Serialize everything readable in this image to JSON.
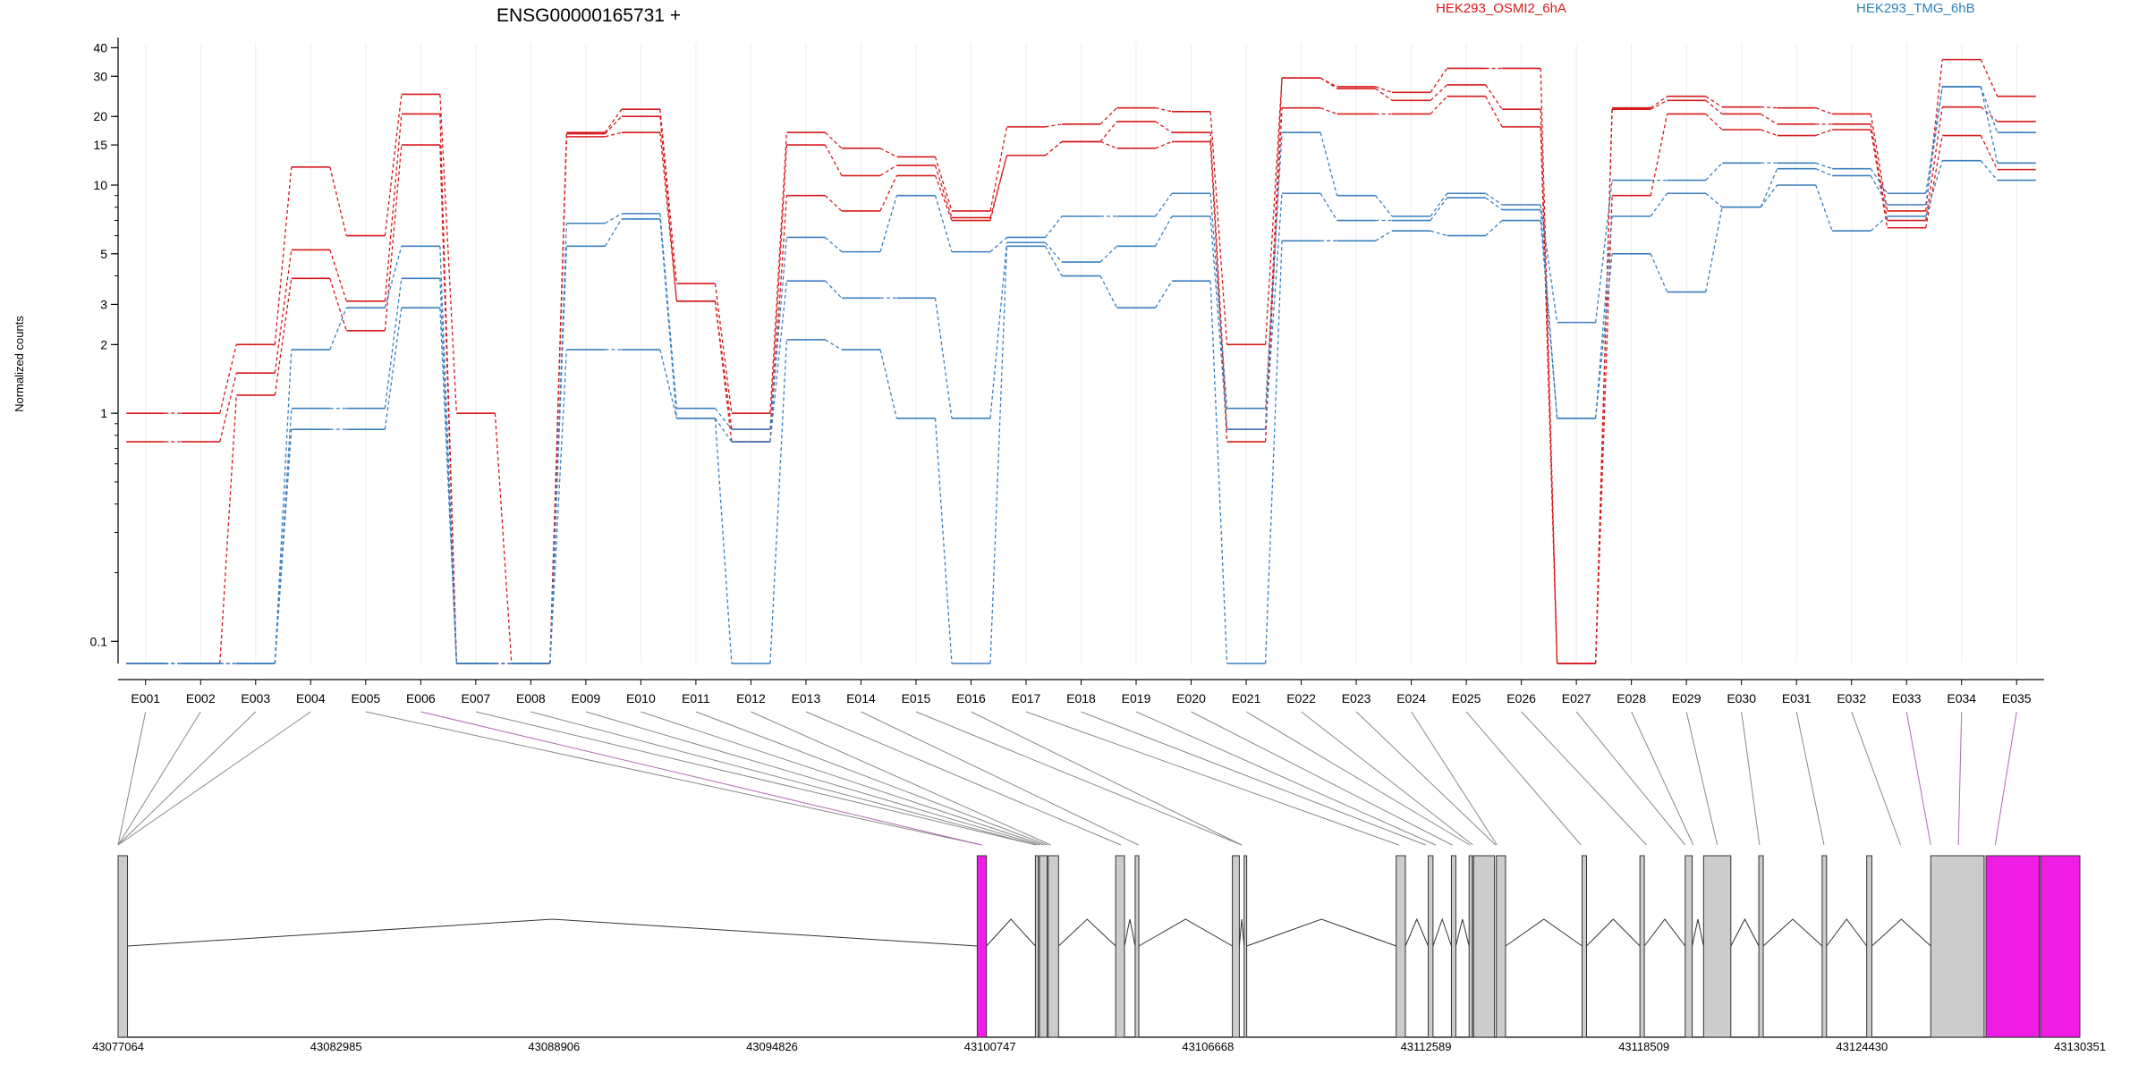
{
  "title": "ENSG00000165731 +",
  "legend": [
    {
      "name": "HEK293_OSMI2_6hA",
      "color": "#d7191c"
    },
    {
      "name": "HEK293_TMG_6hB",
      "color": "#2b83ba"
    }
  ],
  "colors": {
    "osmi": "#d7191c",
    "tmg": "#3a7fbf",
    "exon": "#cccccc",
    "exon_highlight": "#f01ee4",
    "connector": "#888888",
    "connector_highlight": "#b06ab0",
    "grid": "#eeeeee"
  },
  "chart_data": {
    "type": "line",
    "ylabel": "Normalized counts",
    "y_scale": "log",
    "ylim": [
      0.08,
      42
    ],
    "yticks": [
      0.1,
      1,
      2,
      3,
      5,
      10,
      15,
      20,
      30,
      40
    ],
    "ytick_labels": [
      "0.1",
      "1",
      "2",
      "3",
      "5",
      "10",
      "15",
      "20",
      "30",
      "40"
    ],
    "categories": [
      "E001",
      "E002",
      "E003",
      "E004",
      "E005",
      "E006",
      "E007",
      "E008",
      "E009",
      "E010",
      "E011",
      "E012",
      "E013",
      "E014",
      "E015",
      "E016",
      "E017",
      "E018",
      "E019",
      "E020",
      "E021",
      "E022",
      "E023",
      "E024",
      "E025",
      "E026",
      "E027",
      "E028",
      "E029",
      "E030",
      "E031",
      "E032",
      "E033",
      "E034",
      "E035"
    ],
    "series": [
      {
        "name": "HEK293_OSMI2_6hA",
        "values": [
          1.0,
          1.0,
          2.0,
          12.0,
          6.0,
          25.0,
          1.0,
          0.08,
          17.0,
          21.5,
          3.7,
          1.0,
          17.0,
          14.5,
          13.3,
          7.7,
          18.0,
          18.5,
          21.8,
          21.0,
          2.0,
          29.5,
          27.0,
          25.5,
          32.5,
          32.5,
          0.08,
          21.8,
          24.5,
          22.0,
          21.8,
          20.5,
          7.7,
          35.5,
          24.5
        ]
      },
      {
        "name": "HEK293_OSMI2_6hA",
        "values": [
          0.75,
          0.75,
          1.5,
          5.2,
          3.1,
          20.5,
          0.08,
          0.08,
          16.8,
          20.0,
          3.1,
          0.85,
          15.0,
          11.0,
          12.2,
          7.2,
          13.5,
          15.5,
          19.0,
          17.0,
          0.85,
          29.5,
          26.5,
          23.5,
          27.5,
          21.5,
          0.08,
          21.5,
          23.5,
          20.5,
          18.5,
          18.5,
          7.0,
          22.0,
          19.0
        ]
      },
      {
        "name": "HEK293_OSMI2_6hA",
        "values": [
          0.08,
          0.08,
          1.2,
          3.9,
          2.3,
          15.0,
          0.08,
          0.08,
          16.3,
          17.0,
          3.1,
          0.75,
          9.0,
          7.7,
          11.0,
          7.0,
          13.5,
          15.5,
          14.5,
          15.5,
          0.75,
          21.8,
          20.5,
          20.5,
          24.5,
          18.0,
          0.08,
          9.0,
          20.5,
          17.5,
          16.5,
          17.5,
          6.5,
          16.5,
          11.7
        ]
      },
      {
        "name": "HEK293_TMG_6hB",
        "values": [
          0.08,
          0.08,
          0.08,
          1.9,
          2.9,
          5.4,
          0.08,
          0.08,
          6.8,
          7.5,
          1.05,
          0.85,
          5.9,
          5.1,
          9.0,
          5.1,
          5.9,
          7.3,
          7.3,
          9.2,
          1.05,
          17.0,
          9.0,
          7.3,
          9.2,
          8.2,
          2.5,
          10.5,
          10.5,
          12.5,
          12.5,
          11.8,
          9.2,
          27.0,
          17.0
        ]
      },
      {
        "name": "HEK293_TMG_6hB",
        "values": [
          0.08,
          0.08,
          0.08,
          1.05,
          1.05,
          3.9,
          0.08,
          0.08,
          5.4,
          7.1,
          0.95,
          0.75,
          3.8,
          3.2,
          3.2,
          0.95,
          5.6,
          4.6,
          5.4,
          7.3,
          0.85,
          9.2,
          7.0,
          7.0,
          8.8,
          7.8,
          0.95,
          7.3,
          9.2,
          8.0,
          11.8,
          11.0,
          8.2,
          27.0,
          12.5
        ]
      },
      {
        "name": "HEK293_TMG_6hB",
        "values": [
          0.08,
          0.08,
          0.08,
          0.85,
          0.85,
          2.9,
          0.08,
          0.08,
          1.9,
          1.9,
          0.95,
          0.08,
          2.1,
          1.9,
          0.95,
          0.08,
          5.4,
          4.0,
          2.9,
          3.8,
          0.08,
          5.7,
          5.7,
          6.3,
          6.0,
          7.0,
          0.95,
          5.0,
          3.4,
          8.0,
          10.0,
          6.3,
          7.3,
          12.8,
          10.5
        ]
      }
    ],
    "gene_model": {
      "x_ticks": [
        43077064,
        43082985,
        43088906,
        43094826,
        43100747,
        43106668,
        43112589,
        43118509,
        43124430,
        43130351
      ],
      "x_tick_labels": [
        "43077064",
        "43082985",
        "43088906",
        "43094826",
        "43100747",
        "43106668",
        "43112589",
        "43118509",
        "43124430",
        "43130351"
      ],
      "exon_starts": [
        43077064,
        43100400,
        43101980,
        43102090,
        43102330,
        43104160,
        43104690,
        43107330,
        43107650,
        43111780,
        43112650,
        43113280,
        43113760,
        43113880,
        43114500,
        43116830,
        43118400,
        43119630,
        43120130,
        43121630,
        43123350,
        43124560,
        43126300,
        43127800,
        43129280
      ],
      "exon_ends": [
        43077320,
        43100650,
        43102060,
        43102300,
        43102610,
        43104400,
        43104790,
        43107520,
        43107720,
        43112030,
        43112780,
        43113400,
        43113850,
        43114450,
        43114750,
        43116950,
        43118520,
        43119820,
        43120870,
        43121750,
        43123470,
        43124700,
        43127750,
        43129250,
        43130351
      ],
      "highlighted_exons": [
        1,
        23,
        24
      ],
      "exon_anchor_positions": [
        43077064,
        43077064,
        43077064,
        43077064,
        43100525,
        43100525,
        43102000,
        43102000,
        43102100,
        43102200,
        43102300,
        43102400,
        43104300,
        43104780,
        43107580,
        43107580,
        43111850,
        43112580,
        43112850,
        43113300,
        43113780,
        43113860,
        43114480,
        43114520,
        43116800,
        43118580,
        43119630,
        43119850,
        43120500,
        43121650,
        43123400,
        43125480,
        43126300,
        43127050,
        43128050
      ]
    }
  }
}
